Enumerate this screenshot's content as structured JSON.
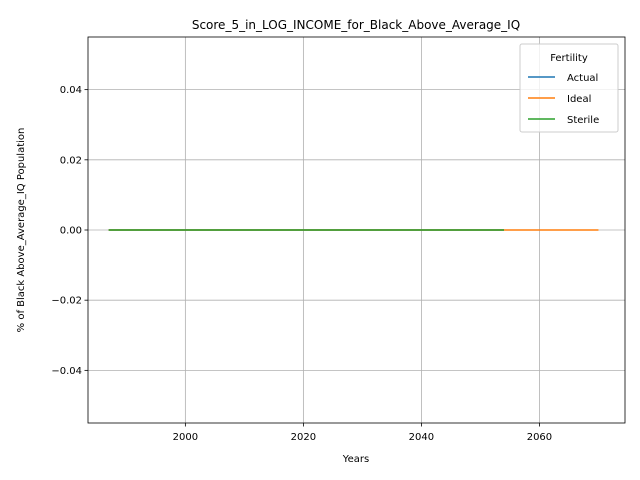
{
  "chart_data": {
    "type": "line",
    "title": "Score_5_in_LOG_INCOME_for_Black_Above_Average_IQ",
    "xlabel": "Years",
    "ylabel": "% of Black Above_Average_IQ Population",
    "xlim": [
      1983.5,
      2074.5
    ],
    "ylim": [
      -0.055,
      0.055
    ],
    "xticks": [
      2000,
      2020,
      2040,
      2060
    ],
    "yticks": [
      -0.04,
      -0.02,
      0.0,
      0.02,
      0.04
    ],
    "xtick_labels": [
      "2000",
      "2020",
      "2040",
      "2060"
    ],
    "ytick_labels": [
      "−0.04",
      "−0.02",
      "0.00",
      "0.02",
      "0.04"
    ],
    "grid": true,
    "legend": {
      "title": "Fertility",
      "placement": "top-right",
      "entries": [
        "Actual",
        "Ideal",
        "Sterile"
      ]
    },
    "series": [
      {
        "name": "Actual",
        "color": "#1f77b4",
        "x": [
          1987,
          2054
        ],
        "y": [
          0.0,
          0.0
        ]
      },
      {
        "name": "Ideal",
        "color": "#ff7f0e",
        "x": [
          1987,
          2070
        ],
        "y": [
          0.0,
          0.0
        ]
      },
      {
        "name": "Sterile",
        "color": "#2ca02c",
        "x": [
          1987,
          2054
        ],
        "y": [
          0.0,
          0.0
        ]
      }
    ]
  }
}
